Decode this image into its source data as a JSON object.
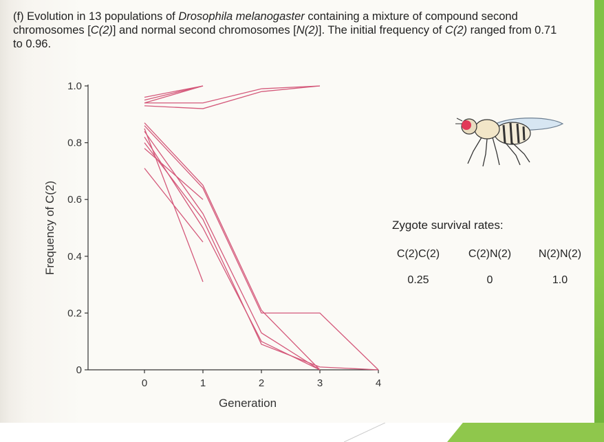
{
  "caption": {
    "label": "(f)",
    "part1": "Evolution in 13 populations of ",
    "species": "Drosophila melanogaster",
    "part2": " containing a mixture of compound second chromosomes [",
    "c2a": "C(2)",
    "part3": "] and normal second chromosomes [",
    "n2": "N(2)",
    "part4": "]. The initial frequency of ",
    "c2b": "C(2)",
    "part5": " ranged from 0.71 to 0.96."
  },
  "zygote": {
    "title": "Zygote survival rates:",
    "genotypes": [
      "C(2)C(2)",
      "C(2)N(2)",
      "N(2)N(2)"
    ],
    "rates": [
      "0.25",
      "0",
      "1.0"
    ]
  },
  "colors": {
    "line": "#d4587a",
    "axis": "#333333",
    "green": "#8bc84a"
  },
  "chart_data": {
    "type": "line",
    "xlabel": "Generation",
    "ylabel": "Frequency of C(2)",
    "xlim": [
      -2,
      4
    ],
    "ylim": [
      0,
      1.0
    ],
    "xticks": [
      "0",
      "1",
      "2",
      "3",
      "4"
    ],
    "yticks": [
      "0",
      "0.2",
      "0.4",
      "0.6",
      "0.8",
      "1.0"
    ],
    "grid": false,
    "series": [
      {
        "x": [
          0,
          1
        ],
        "y": [
          0.96,
          1.0
        ]
      },
      {
        "x": [
          0,
          1
        ],
        "y": [
          0.95,
          1.0
        ]
      },
      {
        "x": [
          0,
          1
        ],
        "y": [
          0.94,
          1.0
        ]
      },
      {
        "x": [
          0,
          1,
          2,
          3
        ],
        "y": [
          0.94,
          0.94,
          0.99,
          1.0
        ]
      },
      {
        "x": [
          0,
          1,
          2,
          3
        ],
        "y": [
          0.93,
          0.92,
          0.98,
          1.0
        ]
      },
      {
        "x": [
          0,
          1,
          2,
          3
        ],
        "y": [
          0.87,
          0.65,
          0.21,
          0.0
        ]
      },
      {
        "x": [
          0,
          1,
          2,
          3,
          4
        ],
        "y": [
          0.86,
          0.64,
          0.2,
          0.2,
          0.0
        ]
      },
      {
        "x": [
          0,
          1,
          2,
          3
        ],
        "y": [
          0.84,
          0.55,
          0.13,
          0.0
        ]
      },
      {
        "x": [
          0,
          1,
          2,
          3
        ],
        "y": [
          0.82,
          0.5,
          0.1,
          0.0
        ]
      },
      {
        "x": [
          0,
          1,
          2,
          3,
          4
        ],
        "y": [
          0.8,
          0.53,
          0.09,
          0.01,
          0.0
        ]
      },
      {
        "x": [
          0,
          1
        ],
        "y": [
          0.85,
          0.31
        ]
      },
      {
        "x": [
          0,
          1
        ],
        "y": [
          0.78,
          0.6
        ]
      },
      {
        "x": [
          0,
          1
        ],
        "y": [
          0.71,
          0.45
        ]
      }
    ]
  }
}
